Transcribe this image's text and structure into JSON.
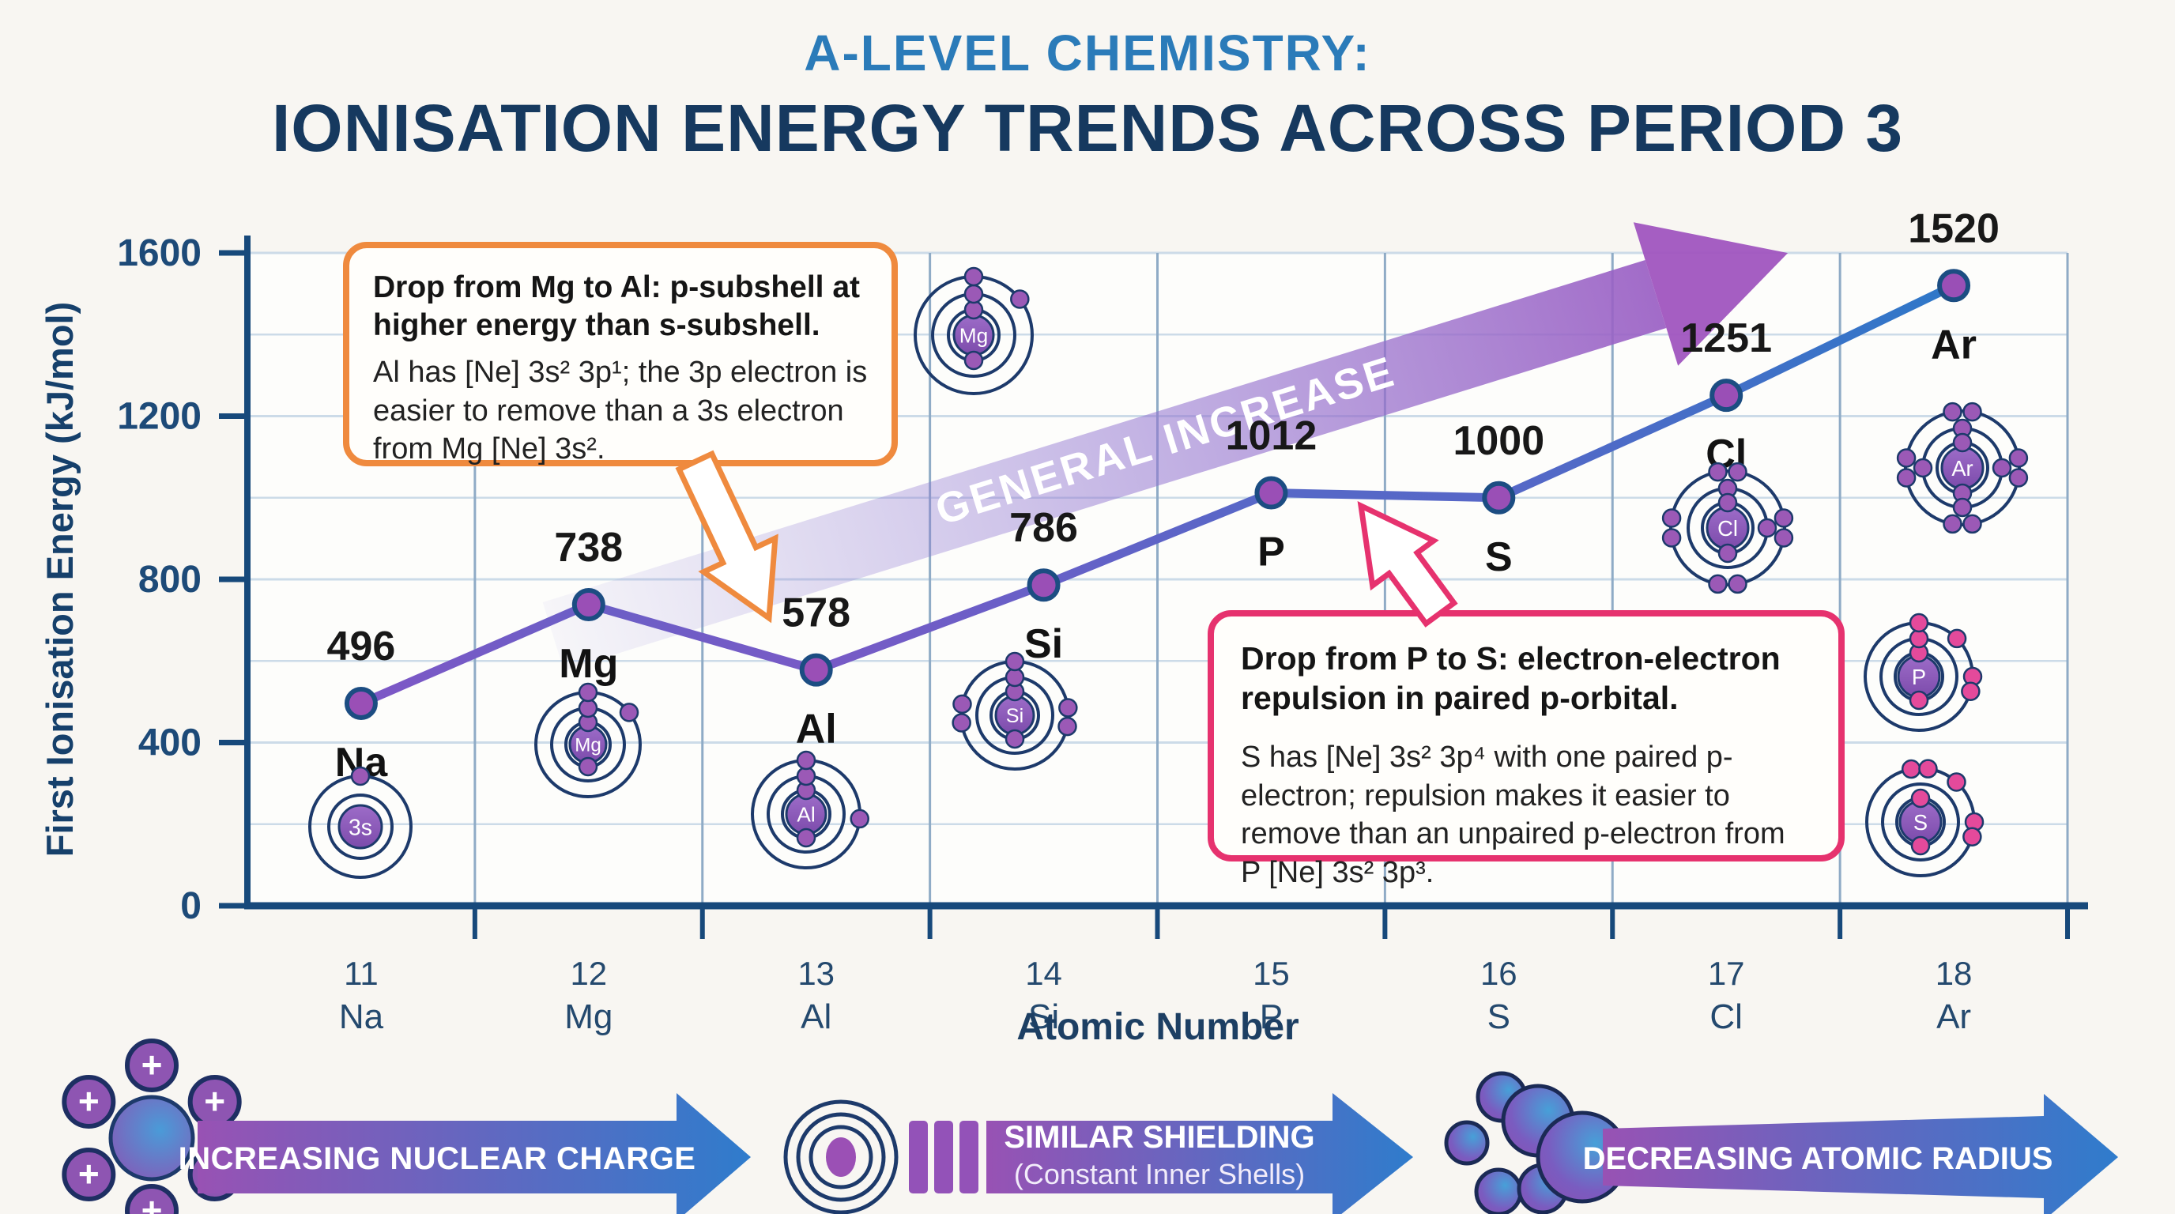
{
  "title": {
    "line1": "A-LEVEL CHEMISTRY:",
    "line2": "IONISATION ENERGY TRENDS ACROSS PERIOD 3"
  },
  "chart_data": {
    "type": "line",
    "x": [
      11,
      12,
      13,
      14,
      15,
      16,
      17,
      18
    ],
    "categories": [
      "Na",
      "Mg",
      "Al",
      "Si",
      "P",
      "S",
      "Cl",
      "Ar"
    ],
    "values": [
      496,
      738,
      578,
      786,
      1012,
      1000,
      1251,
      1520
    ],
    "xlabel": "Atomic Number",
    "ylabel": "First Ionisation Energy (kJ/mol)",
    "ylim": [
      0,
      1600
    ],
    "yticks": [
      0,
      400,
      800,
      1200,
      1600
    ],
    "minor_grid_step": 200,
    "grid": true,
    "legend": "none",
    "trend_annotation": "GENERAL INCREASE",
    "colors": {
      "line_low": "#7e57c6",
      "line_high": "#2e78c8",
      "point_fill": "#9a4fb6",
      "point_stroke": "#1c4d82",
      "axis": "#17497b",
      "grid_h": "#ccdbe8",
      "grid_v": "#8fabc6",
      "ribbon": "#a055bf"
    }
  },
  "callouts": {
    "mg_al": {
      "heading": "Drop from Mg to Al: p-subshell at higher energy than s-subshell.",
      "body": "Al has [Ne] 3s² 3p¹; the 3p electron is easier to remove than a 3s electron from Mg [Ne] 3s².",
      "border_color": "#ef8a3e"
    },
    "p_s": {
      "heading": "Drop from P to S: electron-electron repulsion in paired p-orbital.",
      "body": "S has [Ne] 3s² 3p⁴ with one paired p-electron; repulsion makes it easier to remove than an unpaired p-electron from P [Ne] 3s² 3p³.",
      "border_color": "#e6326e"
    }
  },
  "atoms": [
    {
      "id": "na-atom",
      "nucleus_label": "3s"
    },
    {
      "id": "mg-atom-chart",
      "nucleus_label": "Mg"
    },
    {
      "id": "mg-atom-top",
      "nucleus_label": "Mg"
    },
    {
      "id": "al-atom",
      "nucleus_label": "Al"
    },
    {
      "id": "si-atom",
      "nucleus_label": "Si"
    },
    {
      "id": "cl-atom",
      "nucleus_label": "Cl"
    },
    {
      "id": "ar-atom",
      "nucleus_label": "Ar"
    },
    {
      "id": "p-atom",
      "nucleus_label": "P"
    },
    {
      "id": "s-atom",
      "nucleus_label": "S"
    }
  ],
  "footer": {
    "arrows": [
      {
        "label": "INCREASING NUCLEAR CHARGE",
        "sublabel": ""
      },
      {
        "label": "SIMILAR SHIELDING",
        "sublabel": "(Constant Inner Shells)"
      },
      {
        "label": "DECREASING ATOMIC RADIUS",
        "sublabel": ""
      }
    ]
  }
}
